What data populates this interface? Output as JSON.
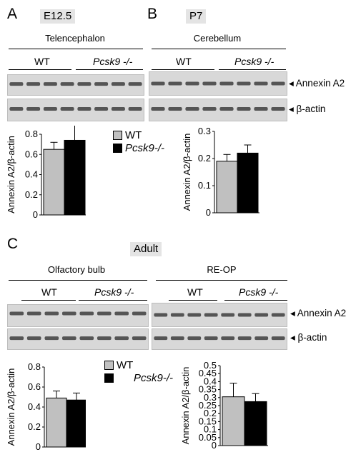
{
  "panelA": {
    "letter": "A",
    "age": "E12.5",
    "tissue": "Telencephalon",
    "genotypes": [
      "WT",
      "Pcsk9 -/-"
    ]
  },
  "panelB": {
    "letter": "B",
    "age": "P7",
    "tissue": "Cerebellum",
    "genotypes": [
      "WT",
      "Pcsk9 -/-"
    ]
  },
  "panelC": {
    "letter": "C",
    "age": "Adult",
    "tissue_left": "Olfactory bulb",
    "tissue_right": "RE-OP",
    "genotypes": [
      "WT",
      "Pcsk9 -/-"
    ]
  },
  "blot_labels": {
    "annexin": "Annexin A2",
    "actin": "β-actin",
    "arrow": "◂"
  },
  "legend": {
    "wt": "WT",
    "ko": "Pcsk9-/-"
  },
  "colors": {
    "wt": "#c0c0c0",
    "ko": "#000000",
    "band": "#2a2a2a",
    "blot_bg": "#d8d8d8",
    "tag_bg": "#e4e4e4"
  },
  "chart_data": [
    {
      "type": "bar",
      "panel": "A",
      "ylabel": "Annexin A2/β-actin",
      "ylim": [
        0,
        0.8
      ],
      "yticks": [
        0,
        0.2,
        0.4,
        0.6,
        0.8
      ],
      "ytick_labels": [
        "0",
        "0.2",
        "0.4",
        "0.6",
        "0.8"
      ],
      "categories": [
        "WT",
        "Pcsk9-/-"
      ],
      "values": [
        0.65,
        0.74
      ],
      "errors": [
        0.07,
        0.17
      ]
    },
    {
      "type": "bar",
      "panel": "B",
      "ylabel": "Annexin A2/β-actin",
      "ylim": [
        0,
        0.3
      ],
      "yticks": [
        0,
        0.1,
        0.2,
        0.3
      ],
      "ytick_labels": [
        "0",
        "0.1",
        "0.2",
        "0.3"
      ],
      "categories": [
        "WT",
        "Pcsk9-/-"
      ],
      "values": [
        0.19,
        0.22
      ],
      "errors": [
        0.025,
        0.03
      ]
    },
    {
      "type": "bar",
      "panel": "C-olfactory-bulb",
      "ylabel": "Annexin A2/β-actin",
      "ylim": [
        0,
        0.8
      ],
      "yticks": [
        0,
        0.2,
        0.4,
        0.6,
        0.8
      ],
      "ytick_labels": [
        "0",
        "0.2",
        "0.4",
        "0.6",
        "0.8"
      ],
      "categories": [
        "WT",
        "Pcsk9-/-"
      ],
      "values": [
        0.49,
        0.47
      ],
      "errors": [
        0.07,
        0.07
      ]
    },
    {
      "type": "bar",
      "panel": "C-re-op",
      "ylabel": "Annexin A2/β-actin",
      "ylim": [
        0,
        0.5
      ],
      "yticks": [
        0,
        0.05,
        0.1,
        0.15,
        0.2,
        0.25,
        0.3,
        0.35,
        0.4,
        0.45,
        0.5
      ],
      "ytick_labels": [
        "0",
        "0.05",
        "0.1",
        "0.15",
        "0.2",
        "0.25",
        "0.3",
        "0.35",
        "0.4",
        "0.45",
        "0.5"
      ],
      "categories": [
        "WT",
        "Pcsk9-/-"
      ],
      "values": [
        0.305,
        0.275
      ],
      "errors": [
        0.085,
        0.05
      ]
    }
  ]
}
